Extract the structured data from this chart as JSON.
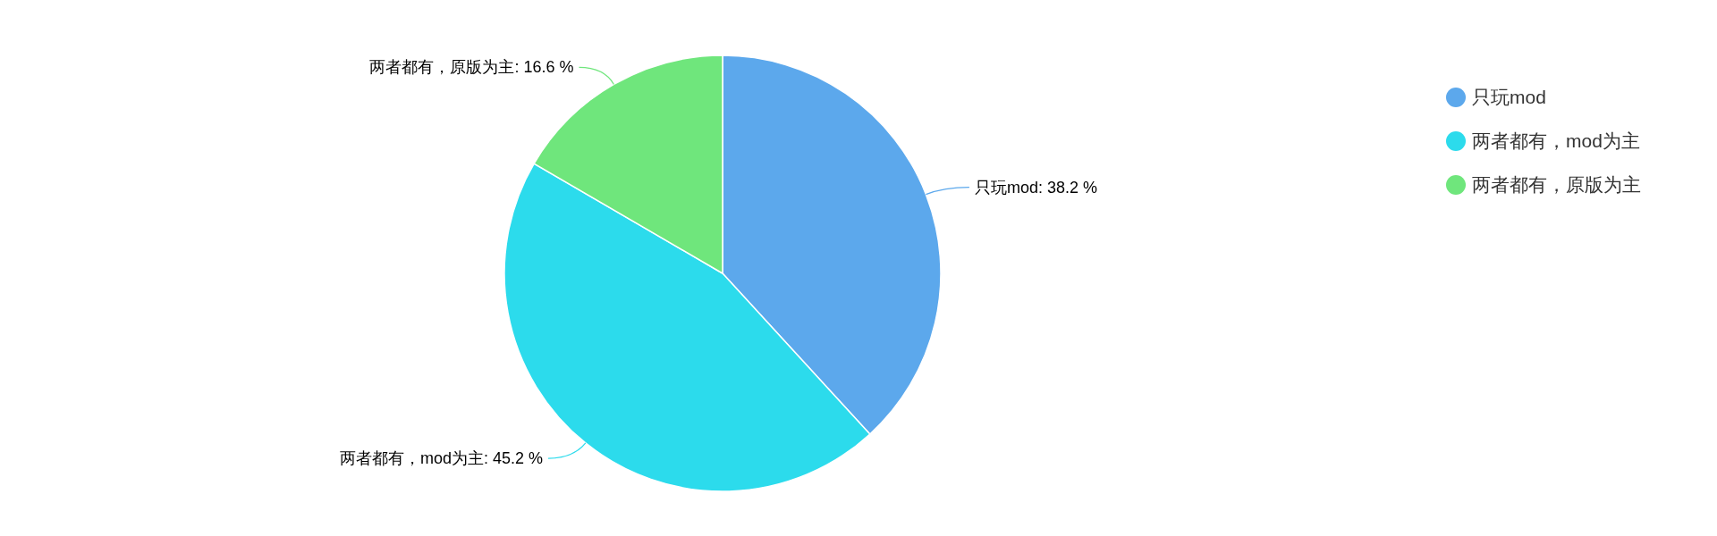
{
  "chart_data": {
    "type": "pie",
    "categories": [
      "只玩mod",
      "两者都有，mod为主",
      "两者都有，原版为主"
    ],
    "values": [
      38.2,
      45.2,
      16.6
    ],
    "colors": [
      "#5ca8ec",
      "#2cdbec",
      "#6fe67c"
    ],
    "value_labels": [
      "只玩mod: 38.2 %",
      "两者都有，mod为主: 45.2 %",
      "两者都有，原版为主: 16.6 %"
    ],
    "legend": "top right"
  }
}
